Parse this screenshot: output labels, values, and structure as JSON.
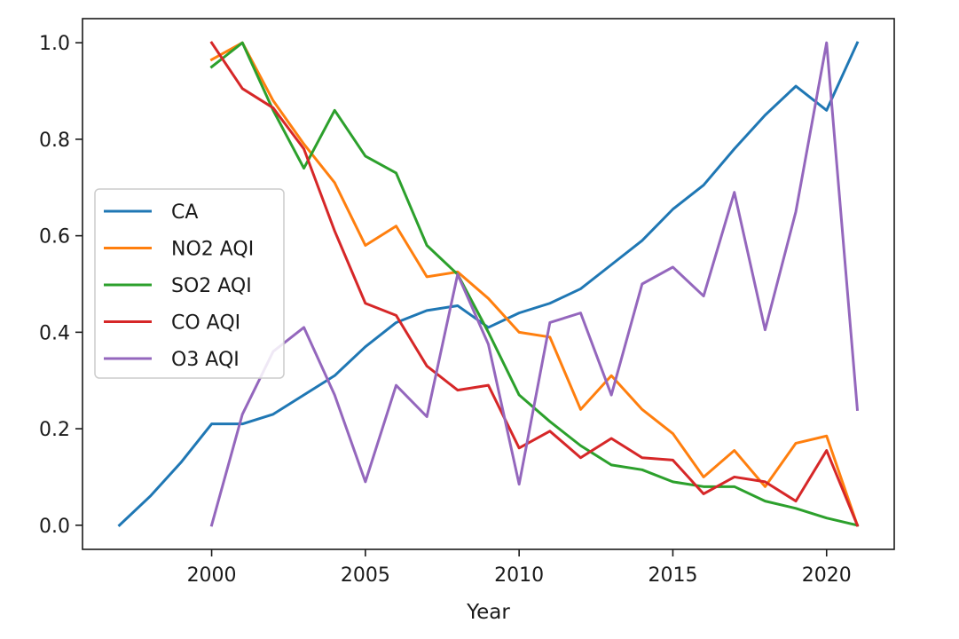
{
  "chart_data": {
    "type": "line",
    "title": "",
    "xlabel": "Year",
    "ylabel": "",
    "xlim": [
      1995.8,
      2022.2
    ],
    "ylim": [
      -0.05,
      1.05
    ],
    "xticks": [
      2000,
      2005,
      2010,
      2015,
      2020
    ],
    "yticks": [
      0.0,
      0.2,
      0.4,
      0.6,
      0.8,
      1.0
    ],
    "ytick_labels": [
      "0.0",
      "0.2",
      "0.4",
      "0.6",
      "0.8",
      "1.0"
    ],
    "grid": false,
    "legend_position": "center-left",
    "series": [
      {
        "name": "CA",
        "color": "#1f77b4",
        "x": [
          1997,
          1998,
          1999,
          2000,
          2001,
          2002,
          2003,
          2004,
          2005,
          2006,
          2007,
          2008,
          2009,
          2010,
          2011,
          2012,
          2013,
          2014,
          2015,
          2016,
          2017,
          2018,
          2019,
          2020,
          2021
        ],
        "y": [
          0.0,
          0.06,
          0.13,
          0.21,
          0.21,
          0.23,
          0.27,
          0.31,
          0.37,
          0.42,
          0.445,
          0.455,
          0.41,
          0.44,
          0.46,
          0.49,
          0.54,
          0.59,
          0.655,
          0.705,
          0.78,
          0.85,
          0.91,
          0.86,
          1.0
        ]
      },
      {
        "name": "NO2 AQI",
        "color": "#ff7f0e",
        "x": [
          2000,
          2001,
          2002,
          2003,
          2004,
          2005,
          2006,
          2007,
          2008,
          2009,
          2010,
          2011,
          2012,
          2013,
          2014,
          2015,
          2016,
          2017,
          2018,
          2019,
          2020,
          2021
        ],
        "y": [
          0.965,
          1.0,
          0.88,
          0.79,
          0.71,
          0.58,
          0.62,
          0.515,
          0.525,
          0.47,
          0.4,
          0.39,
          0.24,
          0.31,
          0.24,
          0.19,
          0.1,
          0.155,
          0.08,
          0.17,
          0.185,
          0.0
        ]
      },
      {
        "name": "SO2 AQI",
        "color": "#2ca02c",
        "x": [
          2000,
          2001,
          2002,
          2003,
          2004,
          2005,
          2006,
          2007,
          2008,
          2009,
          2010,
          2011,
          2012,
          2013,
          2014,
          2015,
          2016,
          2017,
          2018,
          2019,
          2020,
          2021
        ],
        "y": [
          0.95,
          1.0,
          0.86,
          0.74,
          0.86,
          0.765,
          0.73,
          0.58,
          0.52,
          0.4,
          0.27,
          0.215,
          0.165,
          0.125,
          0.115,
          0.09,
          0.08,
          0.08,
          0.05,
          0.035,
          0.015,
          0.0
        ]
      },
      {
        "name": "CO AQI",
        "color": "#d62728",
        "x": [
          2000,
          2001,
          2002,
          2003,
          2004,
          2005,
          2006,
          2007,
          2008,
          2009,
          2010,
          2011,
          2012,
          2013,
          2014,
          2015,
          2016,
          2017,
          2018,
          2019,
          2020,
          2021
        ],
        "y": [
          1.0,
          0.905,
          0.865,
          0.78,
          0.61,
          0.46,
          0.435,
          0.33,
          0.28,
          0.29,
          0.16,
          0.195,
          0.14,
          0.18,
          0.14,
          0.135,
          0.065,
          0.1,
          0.09,
          0.05,
          0.155,
          0.0
        ]
      },
      {
        "name": "O3 AQI",
        "color": "#9467bd",
        "x": [
          2000,
          2001,
          2002,
          2003,
          2004,
          2005,
          2006,
          2007,
          2008,
          2009,
          2010,
          2011,
          2012,
          2013,
          2014,
          2015,
          2016,
          2017,
          2018,
          2019,
          2020,
          2021
        ],
        "y": [
          0.0,
          0.23,
          0.36,
          0.41,
          0.27,
          0.09,
          0.29,
          0.225,
          0.52,
          0.375,
          0.085,
          0.42,
          0.44,
          0.27,
          0.5,
          0.535,
          0.475,
          0.69,
          0.405,
          0.65,
          1.0,
          0.24
        ]
      }
    ]
  }
}
